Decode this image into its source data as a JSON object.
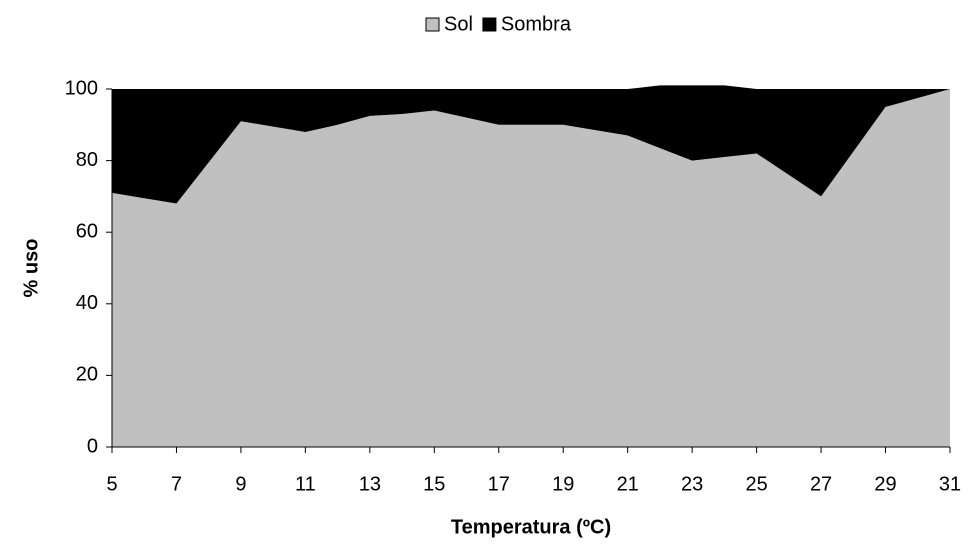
{
  "chart_data": {
    "type": "stacked_area",
    "x": [
      5,
      6,
      7,
      8,
      9,
      10,
      11,
      12,
      13,
      14,
      15,
      16,
      17,
      18,
      19,
      20,
      21,
      22,
      23,
      24,
      25,
      26,
      27,
      28,
      29,
      30,
      31
    ],
    "series": [
      {
        "name": "Sol",
        "color": "#c0c0c0",
        "values": [
          71,
          69.5,
          68,
          79.5,
          91,
          89.5,
          88,
          90,
          92.5,
          93,
          94,
          92,
          90,
          90,
          90,
          88.5,
          87,
          83.5,
          80,
          81,
          82,
          76,
          70,
          82.5,
          95,
          97.5,
          100
        ]
      },
      {
        "name": "Sombra",
        "color": "#000000",
        "values": [
          29,
          30.5,
          32,
          20.5,
          9,
          10.5,
          12,
          10,
          7.5,
          7,
          6,
          8,
          10,
          10,
          10,
          11.5,
          13,
          17.5,
          21,
          20,
          18,
          24,
          30,
          17.5,
          5,
          2.5,
          0
        ]
      }
    ],
    "xlabel": "Temperatura (ºC)",
    "ylabel": "% uso",
    "xlim": [
      5,
      31
    ],
    "xticks": [
      5,
      7,
      9,
      11,
      13,
      15,
      17,
      19,
      21,
      23,
      25,
      27,
      29,
      31
    ],
    "ylim": [
      0,
      100
    ],
    "yticks": [
      0,
      20,
      40,
      60,
      80,
      100
    ],
    "legend": "top"
  }
}
